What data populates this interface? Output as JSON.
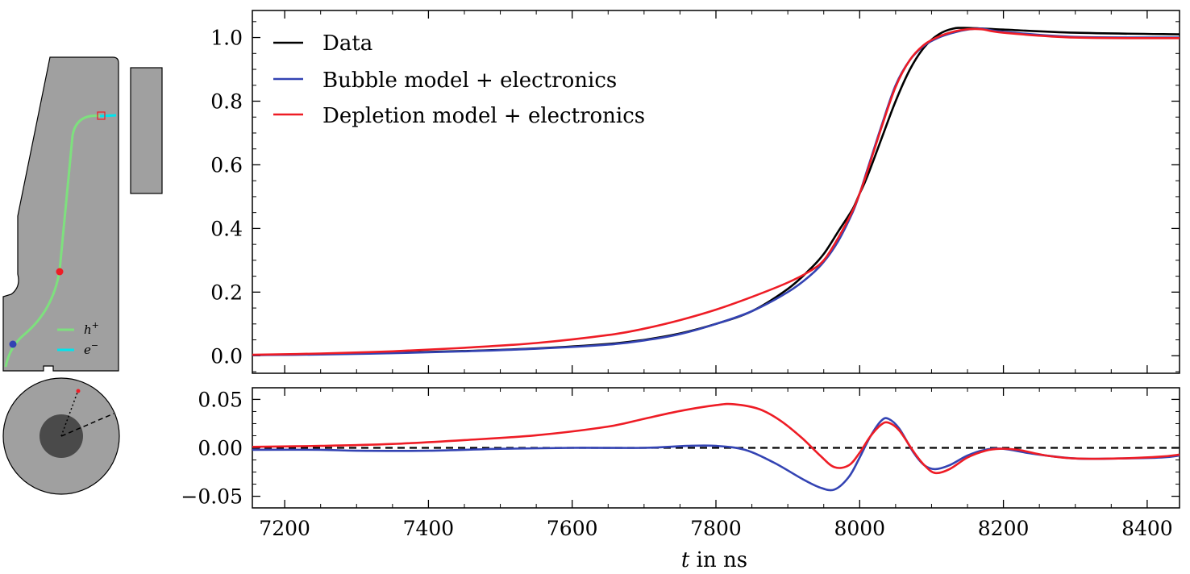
{
  "chart_data": [
    {
      "type": "line",
      "panel": "main",
      "xlim": [
        7155,
        8445
      ],
      "ylim": [
        -0.055,
        1.085
      ],
      "yticks": [
        0.0,
        0.2,
        0.4,
        0.6,
        0.8,
        1.0
      ],
      "ytick_labels": [
        "0.0",
        "0.2",
        "0.4",
        "0.6",
        "0.8",
        "1.0"
      ],
      "legend_position": "top-left",
      "series": [
        {
          "name": "Data",
          "color": "#000000",
          "x": [
            7155,
            7250,
            7350,
            7450,
            7550,
            7650,
            7700,
            7750,
            7800,
            7850,
            7900,
            7930,
            7950,
            7970,
            7990,
            8000,
            8010,
            8030,
            8050,
            8070,
            8090,
            8110,
            8130,
            8150,
            8200,
            8300,
            8445
          ],
          "y": [
            0.002,
            0.005,
            0.009,
            0.015,
            0.023,
            0.037,
            0.05,
            0.07,
            0.1,
            0.14,
            0.21,
            0.27,
            0.32,
            0.39,
            0.46,
            0.51,
            0.56,
            0.68,
            0.8,
            0.9,
            0.97,
            1.01,
            1.028,
            1.03,
            1.025,
            1.015,
            1.01
          ]
        },
        {
          "name": "Bubble model + electronics",
          "color": "#3343b3",
          "x": [
            7155,
            7250,
            7350,
            7450,
            7550,
            7650,
            7700,
            7750,
            7800,
            7850,
            7900,
            7930,
            7950,
            7970,
            7990,
            8000,
            8010,
            8030,
            8050,
            8070,
            8090,
            8110,
            8130,
            8150,
            8170,
            8200,
            8300,
            8445
          ],
          "y": [
            0.002,
            0.004,
            0.008,
            0.014,
            0.022,
            0.035,
            0.048,
            0.068,
            0.1,
            0.14,
            0.2,
            0.25,
            0.295,
            0.36,
            0.45,
            0.51,
            0.58,
            0.72,
            0.85,
            0.93,
            0.975,
            1.0,
            1.015,
            1.025,
            1.028,
            1.018,
            1.002,
            1.0
          ]
        },
        {
          "name": "Depletion model + electronics",
          "color": "#ee1c25",
          "x": [
            7155,
            7250,
            7350,
            7450,
            7550,
            7650,
            7700,
            7750,
            7800,
            7850,
            7900,
            7930,
            7950,
            7970,
            7990,
            8000,
            8010,
            8030,
            8050,
            8070,
            8090,
            8110,
            8130,
            8150,
            8170,
            8200,
            8300,
            8445
          ],
          "y": [
            0.003,
            0.007,
            0.014,
            0.025,
            0.04,
            0.065,
            0.085,
            0.112,
            0.145,
            0.185,
            0.23,
            0.265,
            0.3,
            0.37,
            0.455,
            0.51,
            0.575,
            0.715,
            0.845,
            0.93,
            0.978,
            1.003,
            1.018,
            1.026,
            1.026,
            1.015,
            1.0,
            0.998
          ]
        }
      ]
    },
    {
      "type": "line",
      "panel": "residual",
      "xlim": [
        7155,
        8445
      ],
      "ylim": [
        -0.062,
        0.062
      ],
      "xticks": [
        7200,
        7400,
        7600,
        7800,
        8000,
        8200,
        8400
      ],
      "xtick_labels": [
        "7200",
        "7400",
        "7600",
        "7800",
        "8000",
        "8200",
        "8400"
      ],
      "yticks": [
        -0.05,
        0.0,
        0.05
      ],
      "ytick_labels": [
        "−0.05",
        "0.00",
        "0.05"
      ],
      "xlabel": {
        "var": "t",
        "rest": " in ns"
      },
      "reference_line": {
        "y": 0.0,
        "style": "dashed",
        "color": "#000000"
      },
      "series": [
        {
          "color": "#3343b3",
          "x": [
            7155,
            7250,
            7300,
            7400,
            7500,
            7600,
            7700,
            7760,
            7800,
            7840,
            7880,
            7920,
            7945,
            7965,
            7985,
            8000,
            8015,
            8030,
            8040,
            8055,
            8075,
            8090,
            8105,
            8125,
            8150,
            8175,
            8200,
            8240,
            8300,
            8360,
            8420,
            8445
          ],
          "y": [
            -0.002,
            -0.002,
            -0.003,
            -0.003,
            -0.001,
            0.0,
            0.0,
            0.002,
            0.002,
            -0.002,
            -0.015,
            -0.032,
            -0.041,
            -0.043,
            -0.03,
            -0.01,
            0.012,
            0.028,
            0.03,
            0.02,
            -0.005,
            -0.018,
            -0.022,
            -0.018,
            -0.008,
            -0.002,
            -0.001,
            -0.006,
            -0.011,
            -0.011,
            -0.01,
            -0.008
          ]
        },
        {
          "color": "#ee1c25",
          "x": [
            7155,
            7250,
            7350,
            7450,
            7550,
            7650,
            7700,
            7750,
            7800,
            7825,
            7860,
            7890,
            7920,
            7945,
            7965,
            7985,
            8000,
            8015,
            8030,
            8040,
            8055,
            8075,
            8090,
            8105,
            8125,
            8150,
            8175,
            8195,
            8220,
            8260,
            8300,
            8360,
            8420,
            8445
          ],
          "y": [
            0.001,
            0.002,
            0.004,
            0.008,
            0.013,
            0.022,
            0.03,
            0.038,
            0.044,
            0.045,
            0.04,
            0.028,
            0.01,
            -0.008,
            -0.02,
            -0.018,
            -0.005,
            0.012,
            0.024,
            0.026,
            0.018,
            -0.004,
            -0.018,
            -0.026,
            -0.022,
            -0.01,
            -0.003,
            -0.001,
            -0.002,
            -0.008,
            -0.011,
            -0.011,
            -0.009,
            -0.007
          ]
        }
      ]
    }
  ],
  "detector_inset": {
    "legend": [
      {
        "label": "h",
        "superscript": "+",
        "color": "#7ee07e"
      },
      {
        "label": "e",
        "superscript": "−",
        "color": "#00e5ee"
      }
    ],
    "colors": {
      "body": "#a0a0a0",
      "core": "#4a4a4a",
      "hole_path": "#7ee07e",
      "electron_path": "#00e5ee",
      "interaction_point": "#ee1c25",
      "start_point": "#3343b3"
    }
  }
}
